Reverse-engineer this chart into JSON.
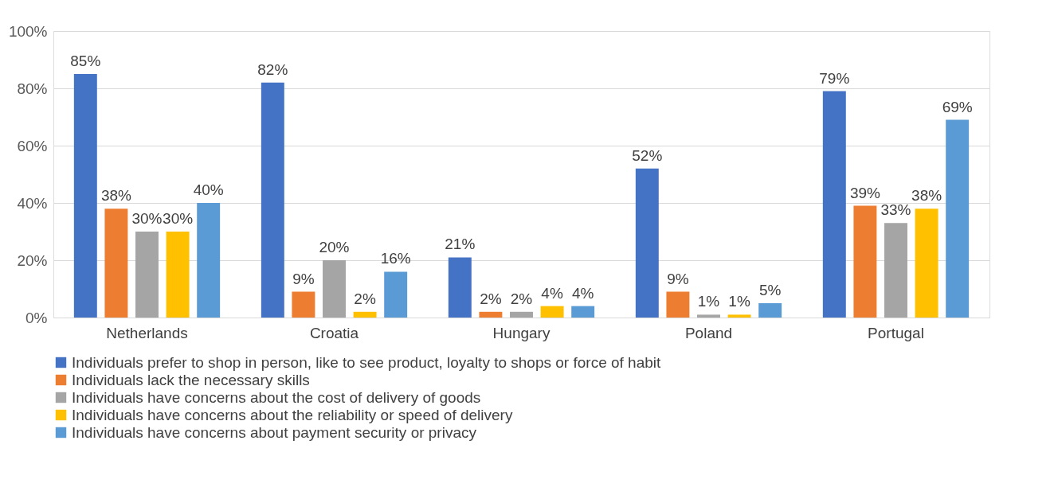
{
  "chart_data": {
    "type": "bar",
    "categories": [
      "Netherlands",
      "Croatia",
      "Hungary",
      "Poland",
      "Portugal"
    ],
    "series": [
      {
        "name": "Individuals prefer to shop in person, like to see product, loyalty to shops or force of habit",
        "color": "#4472c4",
        "values": [
          85,
          82,
          21,
          52,
          79
        ],
        "value_labels": [
          "85%",
          "82%",
          "21%",
          "52%",
          "79%"
        ]
      },
      {
        "name": "Individuals lack the necessary skills",
        "color": "#ed7d31",
        "values": [
          38,
          9,
          2,
          9,
          39
        ],
        "value_labels": [
          "38%",
          "9%",
          "2%",
          "9%",
          "39%"
        ]
      },
      {
        "name": "Individuals have concerns about the cost of delivery of goods",
        "color": "#a5a5a5",
        "values": [
          30,
          20,
          2,
          1,
          33
        ],
        "value_labels": [
          "30%",
          "20%",
          "2%",
          "1%",
          "33%"
        ]
      },
      {
        "name": "Individuals have concerns about the reliability or speed of delivery",
        "color": "#ffc000",
        "values": [
          30,
          2,
          4,
          1,
          38
        ],
        "value_labels": [
          "30%",
          "2%",
          "4%",
          "1%",
          "38%"
        ]
      },
      {
        "name": "Individuals have concerns about payment security or privacy",
        "color": "#5b9bd5",
        "values": [
          40,
          16,
          4,
          5,
          69
        ],
        "value_labels": [
          "40%",
          "16%",
          "4%",
          "5%",
          "69%"
        ]
      }
    ],
    "ylim": [
      0,
      100
    ],
    "yticks": [
      {
        "value": 0,
        "label": "0%"
      },
      {
        "value": 20,
        "label": "20%"
      },
      {
        "value": 40,
        "label": "40%"
      },
      {
        "value": 60,
        "label": "60%"
      },
      {
        "value": 80,
        "label": "80%"
      },
      {
        "value": 100,
        "label": "100%"
      }
    ],
    "grid": "y",
    "legend": "bottom"
  }
}
